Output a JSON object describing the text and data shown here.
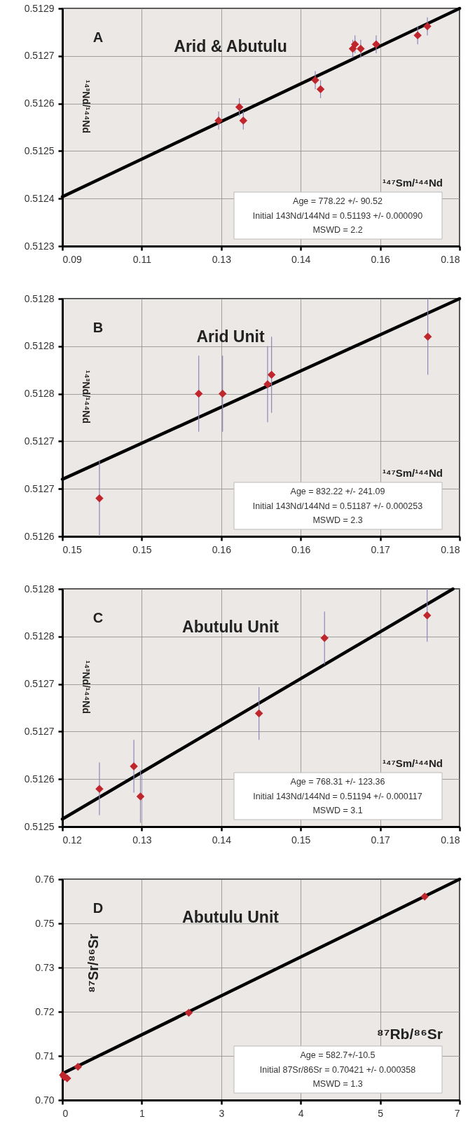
{
  "chart_data": [
    {
      "type": "scatter",
      "title": "Arid & Abutulu",
      "xlabel": "¹⁴⁷Sm/¹⁴⁴Nd",
      "ylabel": "¹⁴³Nd/¹⁴⁴Nd",
      "annotations": [
        "A",
        "Age = 778.22 +/- 90.52",
        "Initial 143Nd/144Nd = 0.51193 +/- 0.000090",
        "MSWD = 2.2"
      ],
      "grid": true,
      "xlim": [
        0.09,
        0.18
      ],
      "xticks": [
        0.09,
        {
          "value": 0.108,
          "label": "0.11"
        },
        {
          "value": 0.126,
          "label": "0.13"
        },
        {
          "value": 0.144,
          "label": "0.14"
        },
        {
          "value": 0.162,
          "label": "0.16"
        },
        0.18
      ],
      "ylim": [
        0.51232,
        0.51285
      ],
      "yticks": [
        {
          "value": 0.51232,
          "label": "0.5123"
        },
        {
          "value": 0.512426,
          "label": "0.5124"
        },
        {
          "value": 0.512532,
          "label": "0.5125"
        },
        {
          "value": 0.512638,
          "label": "0.5126"
        },
        {
          "value": 0.512744,
          "label": "0.5127"
        },
        {
          "value": 0.51285,
          "label": "0.5129"
        }
      ],
      "series": [
        {
          "type": "line",
          "color": "#000000",
          "x": [
            0.09,
            0.18
          ],
          "values": [
            0.51243,
            0.51285
          ]
        },
        {
          "color": "#c0262d",
          "marker": "diamond",
          "x": [
            0.1254,
            0.1301,
            0.131,
            0.1473,
            0.1485,
            0.1558,
            0.1563,
            0.1576,
            0.1611,
            0.1705,
            0.1727
          ],
          "values": [
            0.5126,
            0.51263,
            0.5126,
            0.51269,
            0.51267,
            0.51276,
            0.51277,
            0.51276,
            0.51277,
            0.51279,
            0.51281
          ],
          "errors": [
            2e-05,
            2e-05,
            2e-05,
            2e-05,
            2e-05,
            2e-05,
            2e-05,
            2e-05,
            2e-05,
            2e-05,
            2e-05
          ]
        }
      ]
    },
    {
      "type": "scatter",
      "title": "Arid Unit",
      "xlabel": "¹⁴⁷Sm/¹⁴⁴Nd",
      "ylabel": "¹⁴³Nd/¹⁴⁴Nd",
      "annotations": [
        "B",
        "Age = 832.22 +/- 241.09",
        "Initial 143Nd/144Nd = 0.51187 +/- 0.000253",
        "MSWD = 2.3"
      ],
      "grid": true,
      "xlim": [
        0.145,
        0.175
      ],
      "xticks": [
        {
          "value": 0.145,
          "label": "0.15"
        },
        {
          "value": 0.151,
          "label": "0.15"
        },
        {
          "value": 0.157,
          "label": "0.16"
        },
        {
          "value": 0.163,
          "label": "0.16"
        },
        {
          "value": 0.169,
          "label": "0.17"
        },
        {
          "value": 0.175,
          "label": "0.18"
        }
      ],
      "ylim": [
        0.5126,
        0.51285
      ],
      "yticks": [
        0.5126,
        {
          "value": 0.51265,
          "label": "0.5127"
        },
        {
          "value": 0.5127,
          "label": "0.5127"
        },
        {
          "value": 0.51275,
          "label": "0.5128"
        },
        {
          "value": 0.5128,
          "label": "0.5128"
        },
        {
          "value": 0.51285,
          "label": "0.5128"
        }
      ],
      "series": [
        {
          "type": "line",
          "color": "#000000",
          "x": [
            0.145,
            0.175
          ],
          "values": [
            0.51266,
            0.51285
          ]
        },
        {
          "color": "#c0262d",
          "marker": "diamond",
          "x": [
            0.1478,
            0.1553,
            0.1571,
            0.1605,
            0.1608,
            0.1726
          ],
          "values": [
            0.51264,
            0.51275,
            0.51275,
            0.51276,
            0.51277,
            0.51281
          ],
          "errors": [
            4e-05,
            4e-05,
            4e-05,
            4e-05,
            4e-05,
            4e-05
          ]
        }
      ]
    },
    {
      "type": "scatter",
      "title": "Abutulu Unit",
      "xlabel": "¹⁴⁷Sm/¹⁴⁴Nd",
      "ylabel": "¹⁴³Nd/¹⁴⁴Nd",
      "annotations": [
        "C",
        "Age = 768.31 +/- 123.36",
        "Initial 143Nd/144Nd = 0.51194 +/- 0.000117",
        "MSWD = 3.1"
      ],
      "grid": true,
      "xlim": [
        0.118,
        0.178
      ],
      "xticks": [
        {
          "value": 0.118,
          "label": "0.12"
        },
        {
          "value": 0.13,
          "label": "0.13"
        },
        {
          "value": 0.142,
          "label": "0.14"
        },
        {
          "value": 0.154,
          "label": "0.15"
        },
        {
          "value": 0.166,
          "label": "0.17"
        },
        {
          "value": 0.178,
          "label": "0.18"
        }
      ],
      "ylim": [
        0.51253,
        0.512845
      ],
      "yticks": [
        {
          "value": 0.51253,
          "label": "0.5125"
        },
        {
          "value": 0.512593,
          "label": "0.5126"
        },
        {
          "value": 0.512656,
          "label": "0.5127"
        },
        {
          "value": 0.512719,
          "label": "0.5127"
        },
        {
          "value": 0.512782,
          "label": "0.5128"
        },
        {
          "value": 0.512845,
          "label": "0.5128"
        }
      ],
      "series": [
        {
          "type": "line",
          "color": "#000000",
          "x": [
            0.118,
            0.177
          ],
          "values": [
            0.51254,
            0.512845
          ]
        },
        {
          "color": "#c0262d",
          "marker": "diamond",
          "x": [
            0.1236,
            0.1288,
            0.1298,
            0.1477,
            0.1576,
            0.1731
          ],
          "values": [
            0.51258,
            0.51261,
            0.51257,
            0.51268,
            0.51278,
            0.51281
          ],
          "errors": [
            3.5e-05,
            3.5e-05,
            3.5e-05,
            3.5e-05,
            3.5e-05,
            3.5e-05
          ]
        }
      ]
    },
    {
      "type": "scatter",
      "title": "Abutulu Unit",
      "xlabel": "⁸⁷Rb/⁸⁶Sr",
      "ylabel": "⁸⁷Sr/⁸⁶Sr",
      "annotations": [
        "D",
        "Age = 582.7+/-10.5",
        "Initial 87Sr/86Sr = 0.70421 +/- 0.000358",
        "MSWD = 1.3"
      ],
      "grid": true,
      "xlim": [
        0,
        6.6
      ],
      "xticks": [
        0,
        {
          "value": 1.32,
          "label": "1"
        },
        {
          "value": 2.64,
          "label": "3"
        },
        {
          "value": 3.96,
          "label": "4"
        },
        {
          "value": 5.28,
          "label": "5"
        },
        {
          "value": 6.6,
          "label": "7"
        }
      ],
      "ylim": [
        0.698,
        0.759
      ],
      "yticks": [
        {
          "value": 0.698,
          "label": "0.70"
        },
        {
          "value": 0.7102,
          "label": "0.71"
        },
        {
          "value": 0.7224,
          "label": "0.72"
        },
        {
          "value": 0.7346,
          "label": "0.73"
        },
        {
          "value": 0.7468,
          "label": "0.75"
        },
        {
          "value": 0.759,
          "label": "0.76"
        }
      ],
      "series": [
        {
          "type": "line",
          "color": "#000000",
          "x": [
            0,
            6.6
          ],
          "values": [
            0.7053,
            0.759
          ]
        },
        {
          "color": "#c0262d",
          "marker": "diamond",
          "x": [
            0.01,
            0.03,
            0.08,
            0.26,
            2.1,
            6.02
          ],
          "values": [
            0.7049,
            0.7044,
            0.704,
            0.7072,
            0.7221,
            0.7542
          ]
        }
      ]
    }
  ]
}
